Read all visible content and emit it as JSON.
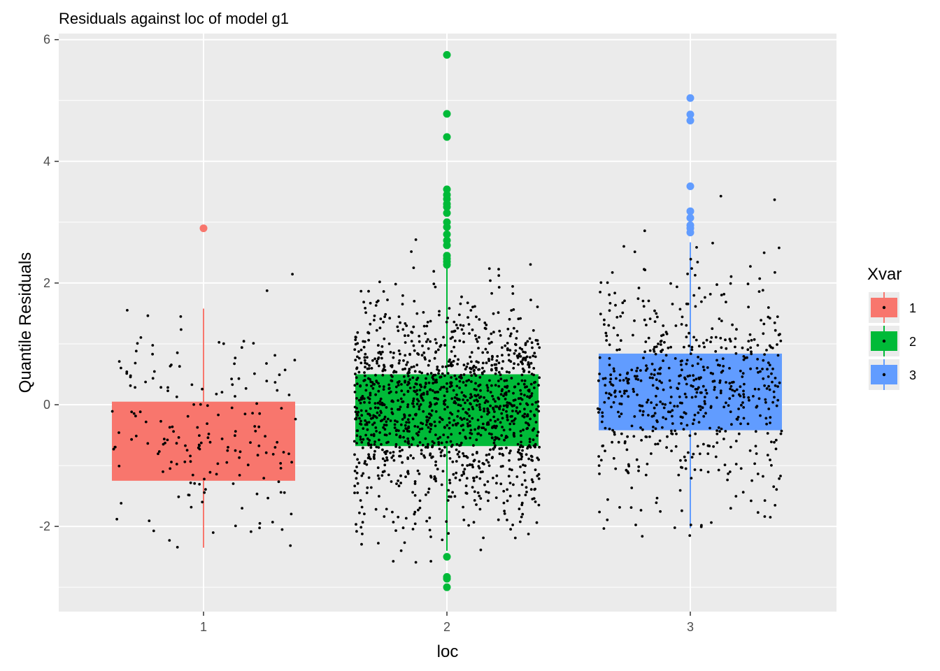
{
  "chart_data": {
    "type": "boxplot",
    "title": "Residuals against loc of model g1",
    "xlabel": "loc",
    "ylabel": "Quantile Residuals",
    "categories": [
      "1",
      "2",
      "3"
    ],
    "ylim": [
      -3.4,
      6.1
    ],
    "y_ticks": [
      -2,
      0,
      2,
      4,
      6
    ],
    "y_tick_labels": [
      "-2",
      "0",
      "2",
      "4",
      "6"
    ],
    "grid": true,
    "legend": {
      "title": "Xvar",
      "position": "right",
      "entries": [
        "1",
        "2",
        "3"
      ]
    },
    "colors": {
      "1": "#F8766D",
      "2": "#00BA38",
      "3": "#619CFF",
      "panel": "#EBEBEB",
      "grid": "#FFFFFF"
    },
    "boxes": [
      {
        "category": "1",
        "q1": -1.25,
        "median": -0.4,
        "q3": 0.05,
        "whisker_low": -2.35,
        "whisker_high": 1.58,
        "outliers": [
          2.9
        ]
      },
      {
        "category": "2",
        "q1": -0.68,
        "median": -0.1,
        "q3": 0.5,
        "whisker_low": -2.4,
        "whisker_high": 2.25,
        "outliers": [
          5.75,
          4.78,
          4.4,
          3.54,
          3.45,
          3.38,
          3.3,
          3.25,
          3.15,
          3.0,
          2.92,
          2.8,
          2.7,
          2.62,
          2.45,
          2.4,
          2.35,
          2.3,
          -2.5,
          -2.83,
          -2.86,
          -3.0
        ]
      },
      {
        "category": "3",
        "q1": -0.42,
        "median": 0.25,
        "q3": 0.84,
        "whisker_low": -2.03,
        "whisker_high": 2.67,
        "outliers": [
          5.04,
          4.77,
          4.67,
          3.59,
          3.18,
          3.07,
          2.95,
          2.9,
          2.83
        ]
      }
    ],
    "jitter_points": [
      {
        "category": "1",
        "n": 180,
        "spread": 0.38
      },
      {
        "category": "2",
        "n": 1400,
        "spread": 0.38
      },
      {
        "category": "3",
        "n": 620,
        "spread": 0.38
      }
    ]
  }
}
